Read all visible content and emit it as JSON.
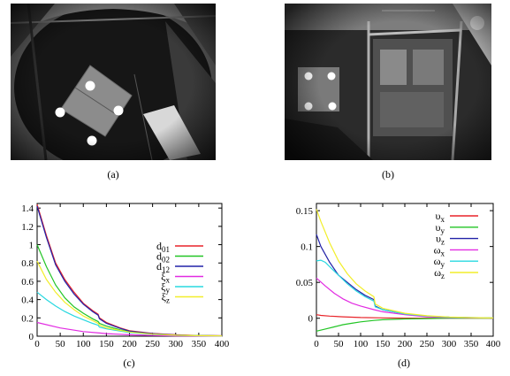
{
  "figure": {
    "captions": {
      "a": "(a)",
      "b": "(b)",
      "c": "(c)",
      "d": "(d)"
    }
  },
  "photos": {
    "a": {
      "description_icon": "camera-photo-icon"
    },
    "b": {
      "description_icon": "camera-photo-icon"
    }
  },
  "chart_data": [
    {
      "type": "line",
      "title": "",
      "xlabel": "",
      "ylabel": "",
      "xlim": [
        0,
        400
      ],
      "ylim": [
        0,
        1.45
      ],
      "xticks": [
        0,
        50,
        100,
        150,
        200,
        250,
        300,
        350,
        400
      ],
      "xtick_labels": [
        "0",
        "50",
        "100",
        "150",
        "200",
        "250",
        "300",
        "350",
        "400"
      ],
      "yticks": [
        0,
        0.2,
        0.4,
        0.6,
        0.8,
        1,
        1.2,
        1.4
      ],
      "ytick_labels": [
        "0",
        "0.2",
        "0.4",
        "0.6",
        "0.8",
        "1",
        "1.2",
        "1.4"
      ],
      "grid": false,
      "legend_position": "right",
      "series": [
        {
          "name": "d01",
          "label_main": "d",
          "label_sub": "01",
          "color": "#e8242a",
          "x": [
            0,
            20,
            40,
            60,
            80,
            100,
            120,
            132,
            135,
            150,
            180,
            200,
            250,
            300,
            350,
            400
          ],
          "y": [
            1.44,
            1.1,
            0.8,
            0.62,
            0.48,
            0.36,
            0.28,
            0.24,
            0.2,
            0.15,
            0.09,
            0.06,
            0.03,
            0.015,
            0.008,
            0.005
          ]
        },
        {
          "name": "d02",
          "label_main": "d",
          "label_sub": "02",
          "color": "#22c525",
          "x": [
            0,
            20,
            40,
            60,
            80,
            100,
            120,
            132,
            135,
            150,
            180,
            200,
            250,
            300,
            350,
            400
          ],
          "y": [
            1.0,
            0.76,
            0.56,
            0.42,
            0.32,
            0.25,
            0.19,
            0.16,
            0.14,
            0.11,
            0.07,
            0.05,
            0.025,
            0.012,
            0.006,
            0.004
          ]
        },
        {
          "name": "d12",
          "label_main": "d",
          "label_sub": "12",
          "color": "#2222a8",
          "x": [
            0,
            20,
            40,
            60,
            80,
            100,
            120,
            132,
            135,
            150,
            180,
            200,
            250,
            300,
            350,
            400
          ],
          "y": [
            1.42,
            1.08,
            0.78,
            0.6,
            0.46,
            0.35,
            0.27,
            0.23,
            0.19,
            0.14,
            0.085,
            0.055,
            0.028,
            0.014,
            0.007,
            0.004
          ]
        },
        {
          "name": "ξx",
          "label_main": "ξ",
          "label_sub": "x",
          "color": "#e22be2",
          "x": [
            0,
            50,
            100,
            135,
            150,
            200,
            250,
            300,
            350,
            400
          ],
          "y": [
            0.15,
            0.09,
            0.05,
            0.035,
            0.028,
            0.015,
            0.008,
            0.004,
            0.002,
            0.001
          ]
        },
        {
          "name": "ξy",
          "label_main": "ξ",
          "label_sub": "y",
          "color": "#28d8e0",
          "x": [
            0,
            20,
            40,
            60,
            80,
            100,
            120,
            132,
            135,
            150,
            200,
            250,
            300,
            350,
            400
          ],
          "y": [
            0.48,
            0.4,
            0.33,
            0.27,
            0.22,
            0.18,
            0.14,
            0.12,
            0.1,
            0.08,
            0.04,
            0.02,
            0.01,
            0.005,
            0.003
          ]
        },
        {
          "name": "ξz",
          "label_main": "ξ",
          "label_sub": "z",
          "color": "#f2ee2a",
          "x": [
            0,
            20,
            40,
            60,
            80,
            100,
            120,
            132,
            135,
            150,
            200,
            250,
            300,
            350,
            400
          ],
          "y": [
            0.82,
            0.62,
            0.48,
            0.37,
            0.29,
            0.22,
            0.17,
            0.14,
            0.12,
            0.09,
            0.045,
            0.022,
            0.011,
            0.006,
            0.003
          ]
        }
      ]
    },
    {
      "type": "line",
      "title": "",
      "xlabel": "",
      "ylabel": "",
      "xlim": [
        0,
        400
      ],
      "ylim": [
        -0.025,
        0.16
      ],
      "xticks": [
        0,
        50,
        100,
        150,
        200,
        250,
        300,
        350,
        400
      ],
      "xtick_labels": [
        "0",
        "50",
        "100",
        "150",
        "200",
        "250",
        "300",
        "350",
        "400"
      ],
      "yticks": [
        0,
        0.05,
        0.1,
        0.15
      ],
      "ytick_labels": [
        "0",
        "0.05",
        "0.1",
        "0.15"
      ],
      "grid": false,
      "legend_position": "top-right",
      "series": [
        {
          "name": "υx",
          "label_main": "υ",
          "label_sub": "x",
          "color": "#e8242a",
          "x": [
            0,
            10,
            30,
            60,
            100,
            150,
            200,
            300,
            400
          ],
          "y": [
            0.005,
            0.004,
            0.003,
            0.002,
            0.001,
            0.0005,
            0.0002,
            0.0,
            0.0
          ]
        },
        {
          "name": "υy",
          "label_main": "υ",
          "label_sub": "y",
          "color": "#22c525",
          "x": [
            0,
            20,
            40,
            60,
            80,
            100,
            130,
            150,
            200,
            250,
            300,
            350,
            400
          ],
          "y": [
            -0.018,
            -0.015,
            -0.012,
            -0.009,
            -0.007,
            -0.005,
            -0.003,
            -0.002,
            -0.001,
            -0.0005,
            0.0,
            0.0,
            0.0
          ]
        },
        {
          "name": "υz",
          "label_main": "υ",
          "label_sub": "z",
          "color": "#2222a8",
          "x": [
            0,
            10,
            30,
            50,
            70,
            90,
            110,
            130,
            133,
            150,
            200,
            250,
            300,
            350,
            400
          ],
          "y": [
            0.117,
            0.1,
            0.078,
            0.06,
            0.05,
            0.04,
            0.032,
            0.026,
            0.017,
            0.012,
            0.006,
            0.003,
            0.0015,
            0.0008,
            0.0004
          ]
        },
        {
          "name": "ωx",
          "label_main": "ω",
          "label_sub": "x",
          "color": "#e22be2",
          "x": [
            0,
            20,
            40,
            60,
            80,
            100,
            130,
            150,
            200,
            250,
            300,
            400
          ],
          "y": [
            0.056,
            0.045,
            0.035,
            0.027,
            0.021,
            0.017,
            0.012,
            0.009,
            0.005,
            0.002,
            0.001,
            0.0003
          ]
        },
        {
          "name": "ωy",
          "label_main": "ω",
          "label_sub": "y",
          "color": "#28d8e0",
          "x": [
            0,
            10,
            20,
            30,
            50,
            70,
            90,
            110,
            130,
            133,
            150,
            200,
            250,
            300,
            400
          ],
          "y": [
            0.08,
            0.081,
            0.078,
            0.072,
            0.06,
            0.048,
            0.038,
            0.03,
            0.024,
            0.016,
            0.012,
            0.006,
            0.003,
            0.0015,
            0.0004
          ]
        },
        {
          "name": "ωz",
          "label_main": "ω",
          "label_sub": "z",
          "color": "#f2ee2a",
          "x": [
            0,
            10,
            30,
            50,
            70,
            90,
            110,
            130,
            133,
            150,
            200,
            250,
            300,
            350,
            400
          ],
          "y": [
            0.152,
            0.135,
            0.105,
            0.08,
            0.062,
            0.048,
            0.038,
            0.03,
            0.02,
            0.014,
            0.007,
            0.0035,
            0.0018,
            0.0009,
            0.0004
          ]
        }
      ]
    }
  ]
}
